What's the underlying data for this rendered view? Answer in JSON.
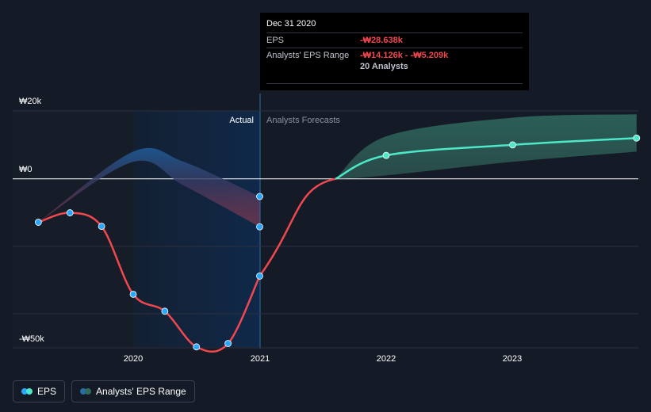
{
  "chart_data": {
    "type": "line",
    "y_axis": {
      "labels": [
        {
          "text": "₩20k",
          "value": 20000
        },
        {
          "text": "₩0",
          "value": 0
        },
        {
          "text": "-₩50k",
          "value": -50000
        }
      ],
      "ylim": [
        -50000,
        20000
      ]
    },
    "x_axis": {
      "ticks": [
        "2020",
        "2021",
        "2022",
        "2023"
      ]
    },
    "regions": {
      "actual_label": "Actual",
      "forecast_label": "Analysts Forecasts"
    },
    "series": [
      {
        "name": "EPS",
        "color": "#f0484e",
        "points": [
          {
            "x": 2019.25,
            "y": -12800
          },
          {
            "x": 2019.5,
            "y": -10000
          },
          {
            "x": 2019.75,
            "y": -14000
          },
          {
            "x": 2020.0,
            "y": -34000
          },
          {
            "x": 2020.25,
            "y": -39000
          },
          {
            "x": 2020.5,
            "y": -49500
          },
          {
            "x": 2020.75,
            "y": -48500
          },
          {
            "x": 2021.0,
            "y": -28638
          }
        ]
      },
      {
        "name": "EPS Forecast",
        "color": "#4ce8c8",
        "points": [
          {
            "x": 2021.6,
            "y": 0
          },
          {
            "x": 2022.0,
            "y": 6900
          },
          {
            "x": 2023.0,
            "y": 10000
          },
          {
            "x": 2023.98,
            "y": 12000
          }
        ]
      },
      {
        "name": "Analysts' EPS Range",
        "upper": [
          {
            "x": 2019.25,
            "y": -12800
          },
          {
            "x": 2020.0,
            "y": 8000
          },
          {
            "x": 2020.4,
            "y": 5000
          },
          {
            "x": 2021.0,
            "y": -5209
          }
        ],
        "lower": [
          {
            "x": 2019.25,
            "y": -12800
          },
          {
            "x": 2020.0,
            "y": 5000
          },
          {
            "x": 2020.4,
            "y": -2000
          },
          {
            "x": 2021.0,
            "y": -14126
          }
        ]
      },
      {
        "name": "Analysts' EPS Range Forecast",
        "upper": [
          {
            "x": 2021.6,
            "y": 0
          },
          {
            "x": 2022.0,
            "y": 12500
          },
          {
            "x": 2023.0,
            "y": 18000
          },
          {
            "x": 2023.98,
            "y": 19000
          }
        ],
        "lower": [
          {
            "x": 2021.6,
            "y": 0
          },
          {
            "x": 2022.0,
            "y": 1000
          },
          {
            "x": 2023.0,
            "y": 5000
          },
          {
            "x": 2023.98,
            "y": 8000
          }
        ]
      }
    ],
    "range_markers": [
      {
        "x": 2021.0,
        "y": -5209
      },
      {
        "x": 2021.0,
        "y": -14126
      }
    ]
  },
  "tooltip": {
    "date": "Dec 31 2020",
    "eps_label": "EPS",
    "eps_value": "-₩28.638k",
    "range_label": "Analysts' EPS Range",
    "range_value": "-₩14.126k - -₩5.209k",
    "analysts": "20 Analysts"
  },
  "legend": {
    "eps_label": "EPS",
    "range_label": "Analysts' EPS Range",
    "colors": {
      "eps_dot1": "#2aa7ff",
      "eps_dot2": "#4ce8c8",
      "range_dot1": "#2a6ea8",
      "range_dot2": "#2f6b60"
    }
  }
}
